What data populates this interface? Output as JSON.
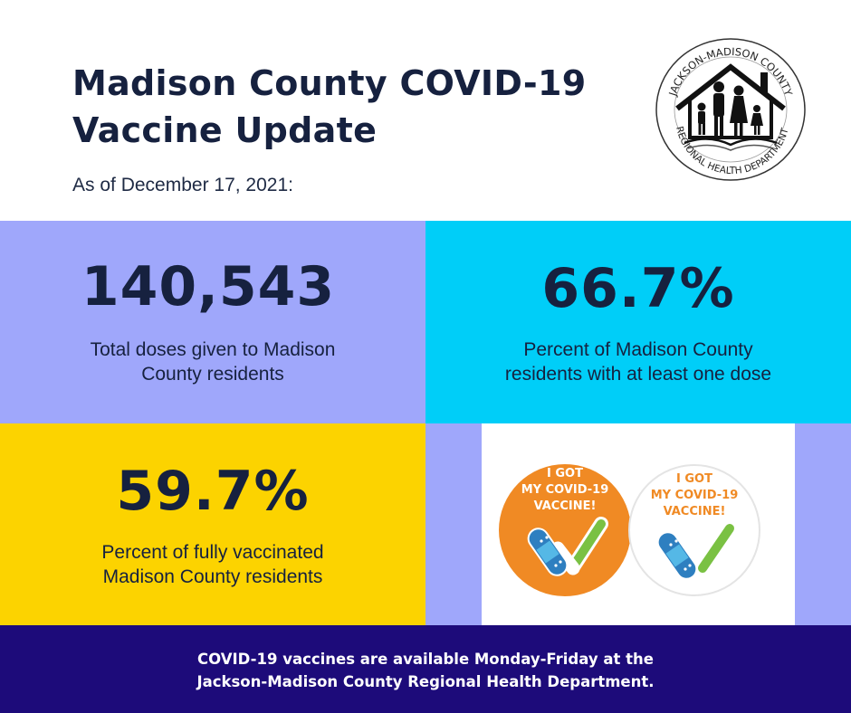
{
  "header": {
    "title": "Madison County COVID-19 Vaccine Update",
    "date": "As of December 17, 2021:"
  },
  "logo": {
    "top_text": "JACKSON-MADISON COUNTY",
    "bottom_text": "REGIONAL HEALTH DEPARTMENT",
    "icon": "family-house-icon"
  },
  "stats": [
    {
      "value": "140,543",
      "label_lines": [
        "Total doses given to Madison",
        "County residents"
      ],
      "color": "#9fa7fb"
    },
    {
      "value": "66.7%",
      "label_lines": [
        "Percent of Madison County",
        "residents with at least one dose"
      ],
      "color": "#00cef8"
    },
    {
      "value": "59.7%",
      "label_lines": [
        "Percent of fully vaccinated",
        "Madison County residents"
      ],
      "color": "#fcd300"
    }
  ],
  "stickers": [
    {
      "lines": [
        "I GOT",
        "MY COVID-19",
        "VACCINE!"
      ],
      "bg": "#f08a24",
      "text_color": "#ffffff",
      "icon": "bandage-checkmark-icon"
    },
    {
      "lines": [
        "I GOT",
        "MY COVID-19",
        "VACCINE!"
      ],
      "bg": "#ffffff",
      "text_color": "#f08a24",
      "icon": "bandage-checkmark-icon"
    }
  ],
  "banner": {
    "lines": [
      "COVID-19 vaccines are available Monday-Friday at the",
      "Jackson-Madison County Regional Health Department."
    ],
    "color": "#1d0b7a"
  }
}
